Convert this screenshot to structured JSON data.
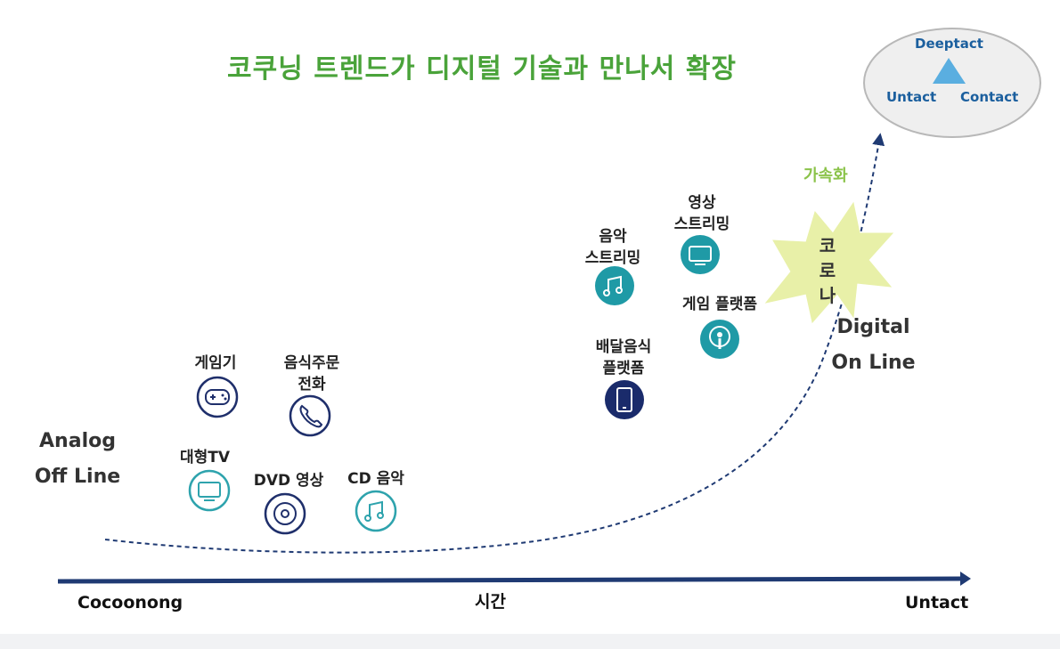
{
  "title": "코쿠닝 트렌드가 디지털 기술과 만나서 확장",
  "ellipse": {
    "top": "Deeptact",
    "left": "Untact",
    "right": "Contact"
  },
  "accel_label": "가속화",
  "corona_label": "코\n로\n나",
  "digital_label": "Digital\nOn Line",
  "analog_label": "Analog\nOff Line",
  "axis": {
    "start": "Cocoonong",
    "middle": "시간",
    "end": "Untact"
  },
  "items": [
    {
      "label": "게임기",
      "icon": "gamepad-icon"
    },
    {
      "label": "음식주문\n전화",
      "icon": "phone-icon"
    },
    {
      "label": "대형TV",
      "icon": "tv-icon"
    },
    {
      "label": "DVD 영상",
      "icon": "disc-icon"
    },
    {
      "label": "CD 음악",
      "icon": "music-note-icon"
    },
    {
      "label": "음악\n스트리밍",
      "icon": "music-note-icon"
    },
    {
      "label": "영상\n스트리밍",
      "icon": "tv-icon"
    },
    {
      "label": "게임 플랫폼",
      "icon": "podcast-icon"
    },
    {
      "label": "배달음식\n플랫폼",
      "icon": "smartphone-icon"
    }
  ],
  "colors": {
    "title": "#4aa33a",
    "navy": "#1f2f6b",
    "teal": "#2ea3ad",
    "arrow": "#1f3a73",
    "corona_star": "#e8f0a8",
    "ellipse_fill": "#efefef",
    "triangle": "#5aaee0"
  }
}
